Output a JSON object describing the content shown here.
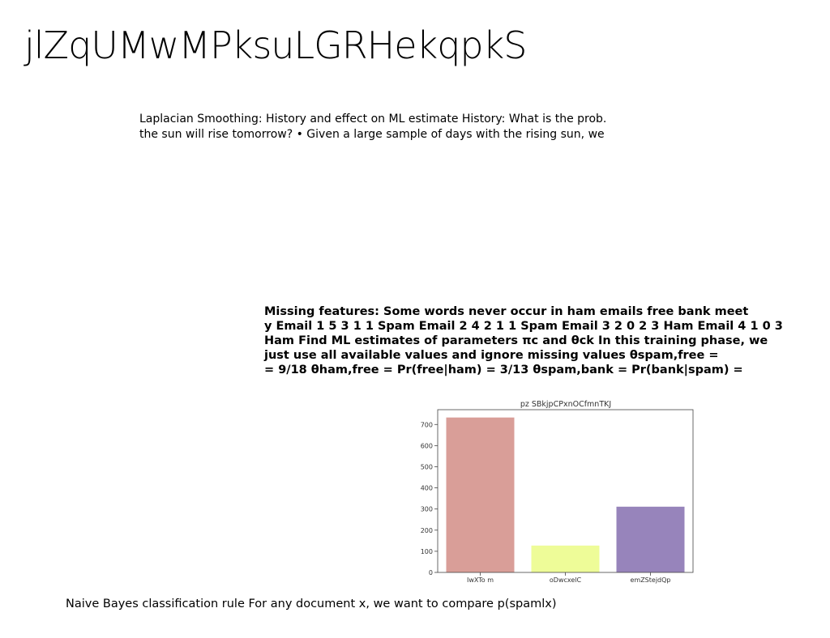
{
  "slide": {
    "title": "jlZqUMwMPksuLGRHekqpkS",
    "paragraph1": "Laplacian Smoothing: History and effect on ML estimate History: What is the prob. the sun will rise tomorrow? • Given a large sample of days with the rising sun, we",
    "paragraph2_lines": [
      "Missing features: Some words never occur in ham emails free bank meet",
      "y Email 1 5 3 1 1 Spam Email 2 4 2 1 1 Spam Email 3 2 0 2 3 Ham Email 4 1 0 3",
      "Ham Find ML estimates of parameters πc and θck In this training phase, we",
      "just use all available values and ignore missing values θspam,free =",
      "= 9/18 θham,free = Pr(free|ham) = 3/13 θspam,bank = Pr(bank|spam) ="
    ],
    "paragraph3": "Naive Bayes classification rule For any document x, we want to compare p(spamlx)"
  },
  "chart_data": {
    "type": "bar",
    "title": "pz SBkjpCPxnOCfmnTKJ",
    "categories": [
      "IwXTo m",
      "oDwcxelC",
      "emZStejdQp"
    ],
    "values": [
      733,
      127,
      311
    ],
    "colors": [
      "#d99e98",
      "#eefc98",
      "#9784bb"
    ],
    "ylim": [
      0,
      770
    ],
    "yticks": [
      0,
      100,
      200,
      300,
      400,
      500,
      600,
      700
    ],
    "xlabel": "",
    "ylabel": "",
    "grid": false
  }
}
